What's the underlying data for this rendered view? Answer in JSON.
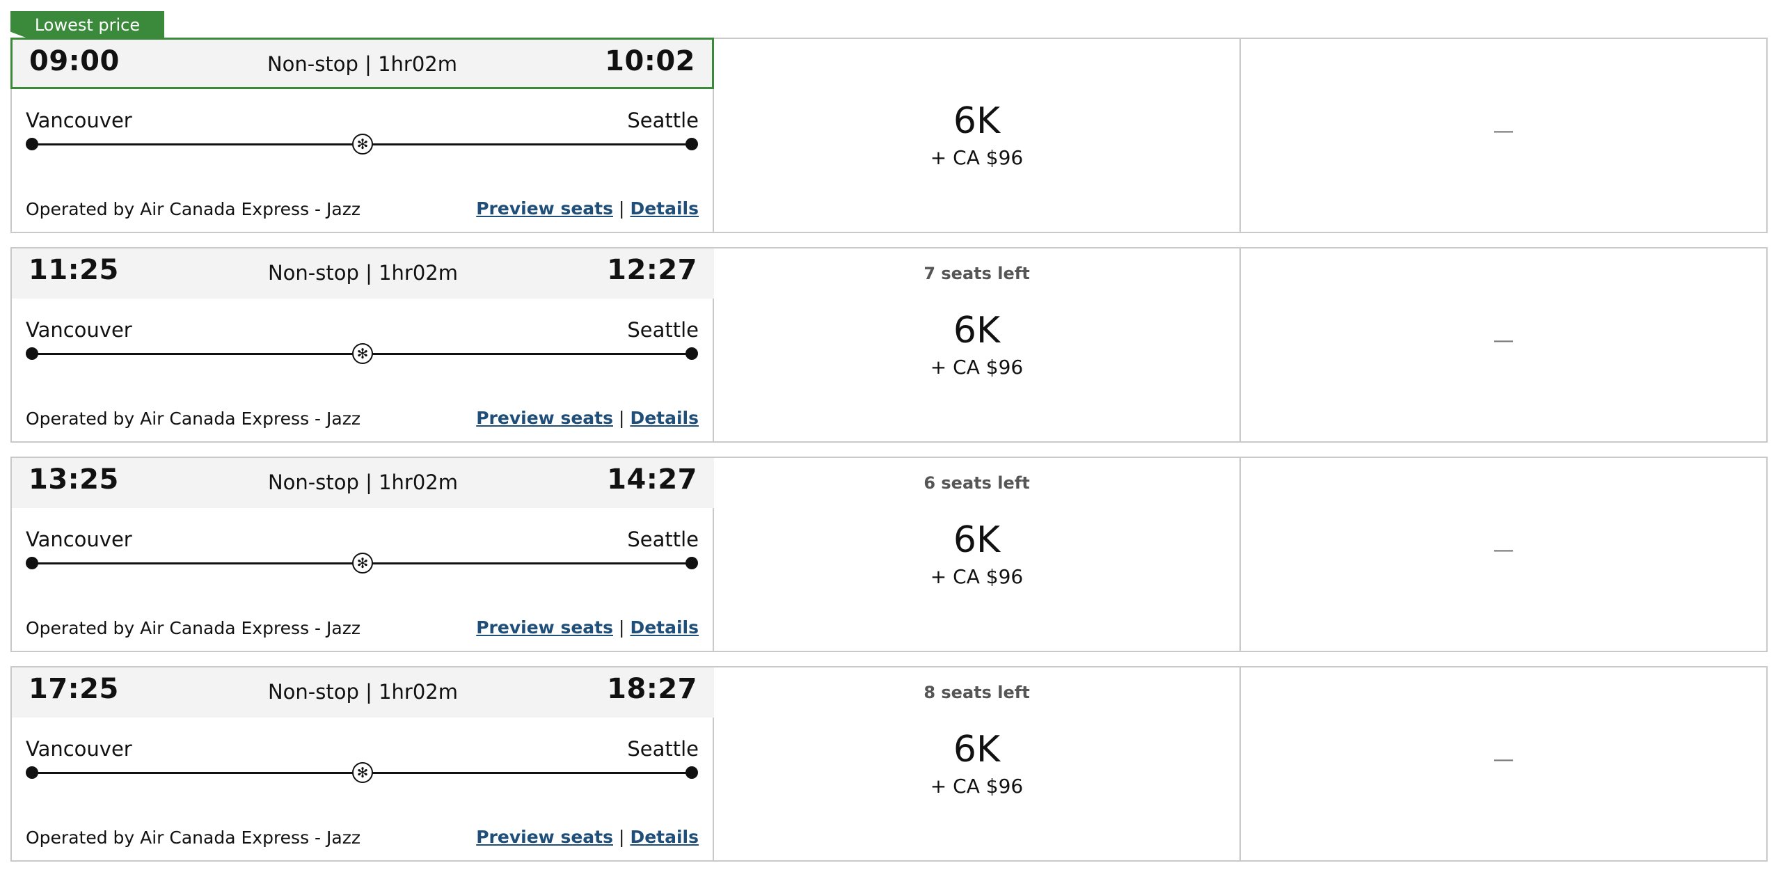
{
  "badge": {
    "label": "Lowest price"
  },
  "flights": [
    {
      "departure": "09:00",
      "arrival": "10:02",
      "stops": "Non-stop | 1hr02m",
      "origin": "Vancouver",
      "destination": "Seattle",
      "operated_by": "Operated by Air Canada Express - Jazz",
      "preview_seats": "Preview seats",
      "details": "Details",
      "seats_left": "",
      "points": "6K",
      "cash": "+ CA $96",
      "other_fare": "—"
    },
    {
      "departure": "11:25",
      "arrival": "12:27",
      "stops": "Non-stop | 1hr02m",
      "origin": "Vancouver",
      "destination": "Seattle",
      "operated_by": "Operated by Air Canada Express - Jazz",
      "preview_seats": "Preview seats",
      "details": "Details",
      "seats_left": "7 seats left",
      "points": "6K",
      "cash": "+ CA $96",
      "other_fare": "—"
    },
    {
      "departure": "13:25",
      "arrival": "14:27",
      "stops": "Non-stop | 1hr02m",
      "origin": "Vancouver",
      "destination": "Seattle",
      "operated_by": "Operated by Air Canada Express - Jazz",
      "preview_seats": "Preview seats",
      "details": "Details",
      "seats_left": "6 seats left",
      "points": "6K",
      "cash": "+ CA $96",
      "other_fare": "—"
    },
    {
      "departure": "17:25",
      "arrival": "18:27",
      "stops": "Non-stop | 1hr02m",
      "origin": "Vancouver",
      "destination": "Seattle",
      "operated_by": "Operated by Air Canada Express - Jazz",
      "preview_seats": "Preview seats",
      "details": "Details",
      "seats_left": "8 seats left",
      "points": "6K",
      "cash": "+ CA $96",
      "other_fare": "—"
    }
  ],
  "icons": {
    "airline": "maple-leaf-icon",
    "link_separator": "|"
  },
  "colors": {
    "lowest_price_green": "#3b8a3b",
    "link_blue": "#1f4e79",
    "border_gray": "#c9c9c9"
  }
}
